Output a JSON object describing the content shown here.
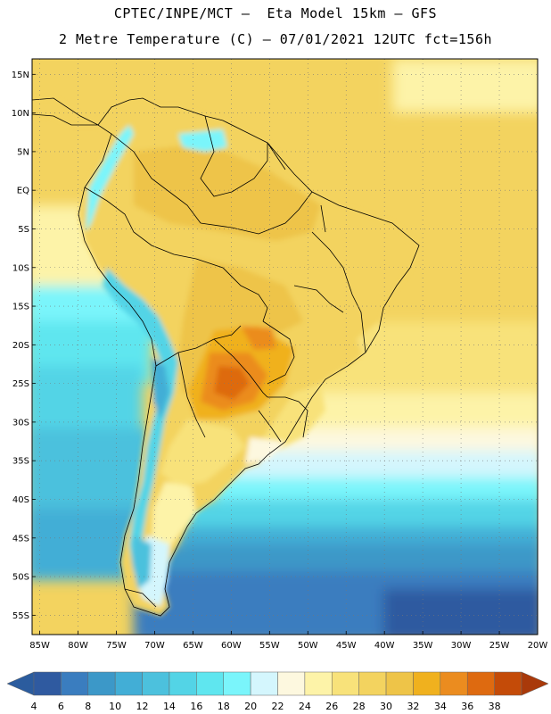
{
  "header": {
    "line1": "CPTEC/INPE/MCT –  Eta Model 15km – GFS",
    "line2": "2 Metre Temperature (C) – 07/01/2021 12UTC fct=156h"
  },
  "map": {
    "lat_labels": [
      "15N",
      "10N",
      "5N",
      "EQ",
      "5S",
      "10S",
      "15S",
      "20S",
      "25S",
      "30S",
      "35S",
      "40S",
      "45S",
      "50S",
      "55S"
    ],
    "lon_labels": [
      "85W",
      "80W",
      "75W",
      "70W",
      "65W",
      "60W",
      "55W",
      "50W",
      "45W",
      "40W",
      "35W",
      "30W",
      "25W",
      "20W"
    ],
    "lat_range": [
      17,
      -57.5
    ],
    "lon_range": [
      -86,
      -20
    ],
    "grid": "dotted"
  },
  "colorbar": {
    "labels": [
      "4",
      "6",
      "8",
      "10",
      "12",
      "14",
      "16",
      "18",
      "20",
      "22",
      "24",
      "26",
      "28",
      "30",
      "32",
      "34",
      "36",
      "38"
    ],
    "colors": [
      "#2f5aa0",
      "#3a7dbf",
      "#3c98c8",
      "#42aed6",
      "#4cc1dd",
      "#53d4e6",
      "#5fe6ef",
      "#7af5fb",
      "#d4f6fd",
      "#fdf8df",
      "#fdf3a8",
      "#f8e27a",
      "#f3d35f",
      "#eec448",
      "#f0b11e",
      "#eb8c1f",
      "#de6a10",
      "#c44b08",
      "#a9390a"
    ],
    "left_arrow_color": "#2b5c9e",
    "right_arrow_color": "#a9390a"
  }
}
